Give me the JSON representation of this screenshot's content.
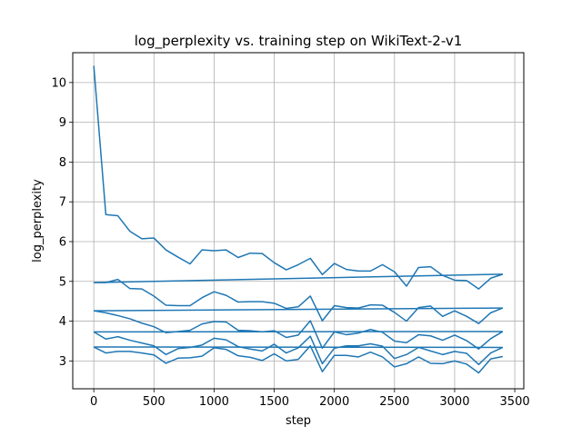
{
  "chart_data": {
    "type": "line",
    "title": "log_perplexity vs. training step on WikiText-2-v1",
    "xlabel": "step",
    "ylabel": "log_perplexity",
    "xlim": [
      -175,
      3575
    ],
    "ylim": [
      2.3,
      10.75
    ],
    "xticks": [
      0,
      500,
      1000,
      1500,
      2000,
      2500,
      3000,
      3500
    ],
    "yticks": [
      3,
      4,
      5,
      6,
      7,
      8,
      9,
      10
    ],
    "grid": true,
    "line_color": "#1f77b4",
    "series": [
      {
        "x": [
          0,
          100,
          200,
          300,
          400,
          500,
          600,
          700,
          800,
          900,
          1000,
          1100,
          1200,
          1300,
          1400,
          1500,
          1600,
          1700,
          1800,
          1900,
          2000,
          2100,
          2200,
          2300,
          2400,
          2500,
          2600,
          2700,
          2800,
          2900,
          3000,
          3100,
          3200,
          3300,
          3400
        ],
        "y": [
          10.42,
          6.68,
          6.65,
          6.26,
          6.07,
          6.09,
          5.79,
          5.61,
          5.44,
          5.79,
          5.77,
          5.79,
          5.6,
          5.71,
          5.7,
          5.47,
          5.29,
          5.42,
          5.58,
          5.17,
          5.45,
          5.3,
          5.26,
          5.26,
          5.42,
          5.24,
          4.88,
          5.35,
          5.37,
          5.15,
          5.03,
          5.02,
          4.81,
          5.08,
          5.18
        ]
      },
      {
        "x": [
          0,
          100,
          200,
          300,
          400,
          500,
          600,
          700,
          800,
          900,
          1000,
          1100,
          1200,
          1300,
          1400,
          1500,
          1600,
          1700,
          1800,
          1900,
          2000,
          2100,
          2200,
          2300,
          2400,
          2500,
          2600,
          2700,
          2800,
          2900,
          3000,
          3100,
          3200,
          3300,
          3400
        ],
        "y": [
          4.97,
          4.97,
          5.05,
          4.82,
          4.81,
          4.63,
          4.4,
          4.39,
          4.39,
          4.59,
          4.74,
          4.65,
          4.48,
          4.49,
          4.49,
          4.45,
          4.32,
          4.36,
          4.63,
          4.01,
          4.39,
          4.34,
          4.33,
          4.41,
          4.4,
          4.22,
          4.0,
          4.34,
          4.38,
          4.12,
          4.26,
          4.12,
          3.94,
          4.21,
          4.33
        ]
      },
      {
        "x": [
          0,
          100,
          200,
          300,
          400,
          500,
          600,
          700,
          800,
          900,
          1000,
          1100,
          1200,
          1300,
          1400,
          1500,
          1600,
          1700,
          1800,
          1900,
          2000,
          2100,
          2200,
          2300,
          2400,
          2500,
          2600,
          2700,
          2800,
          2900,
          3000,
          3100,
          3200,
          3300,
          3400
        ],
        "y": [
          4.26,
          4.21,
          4.14,
          4.06,
          3.95,
          3.86,
          3.71,
          3.74,
          3.77,
          3.93,
          3.99,
          3.98,
          3.77,
          3.76,
          3.73,
          3.76,
          3.59,
          3.65,
          4.01,
          3.32,
          3.73,
          3.66,
          3.7,
          3.79,
          3.72,
          3.5,
          3.46,
          3.66,
          3.63,
          3.52,
          3.65,
          3.51,
          3.3,
          3.56,
          3.74
        ]
      },
      {
        "x": [
          0,
          100,
          200,
          300,
          400,
          500,
          600,
          700,
          800,
          900,
          1000,
          1100,
          1200,
          1300,
          1400,
          1500,
          1600,
          1700,
          1800,
          1900,
          2000,
          2100,
          2200,
          2300,
          2400,
          2500,
          2600,
          2700,
          2800,
          2900,
          3000,
          3100,
          3200,
          3300,
          3400
        ],
        "y": [
          3.73,
          3.55,
          3.61,
          3.52,
          3.45,
          3.38,
          3.16,
          3.31,
          3.34,
          3.4,
          3.57,
          3.53,
          3.36,
          3.3,
          3.25,
          3.42,
          3.2,
          3.33,
          3.62,
          2.93,
          3.32,
          3.38,
          3.38,
          3.43,
          3.37,
          3.06,
          3.16,
          3.34,
          3.25,
          3.16,
          3.24,
          3.19,
          2.91,
          3.2,
          3.34
        ]
      },
      {
        "x": [
          0,
          100,
          200,
          300,
          400,
          500,
          600,
          700,
          800,
          900,
          1000,
          1100,
          1200,
          1300,
          1400,
          1500,
          1600,
          1700,
          1800,
          1900,
          2000,
          2100,
          2200,
          2300,
          2400,
          2500,
          2600,
          2700,
          2800,
          2900,
          3000,
          3100,
          3200,
          3300,
          3400
        ],
        "y": [
          3.35,
          3.2,
          3.24,
          3.24,
          3.2,
          3.15,
          2.94,
          3.07,
          3.08,
          3.12,
          3.33,
          3.29,
          3.13,
          3.09,
          3.01,
          3.18,
          3.0,
          3.04,
          3.38,
          2.73,
          3.14,
          3.14,
          3.1,
          3.22,
          3.1,
          2.85,
          2.93,
          3.1,
          2.94,
          2.93,
          3.0,
          2.92,
          2.7,
          3.05,
          3.11
        ]
      },
      {
        "x": [
          0,
          3400
        ],
        "y": [
          4.97,
          5.18
        ]
      },
      {
        "x": [
          0,
          3400
        ],
        "y": [
          4.26,
          4.33
        ]
      },
      {
        "x": [
          0,
          3400
        ],
        "y": [
          3.73,
          3.74
        ]
      },
      {
        "x": [
          0,
          3400
        ],
        "y": [
          3.35,
          3.34
        ]
      }
    ]
  }
}
